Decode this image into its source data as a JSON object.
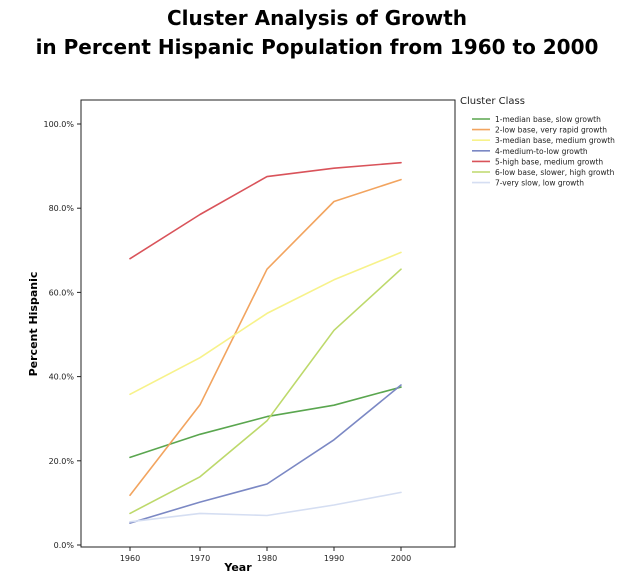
{
  "title_line1": "Cluster Analysis of Growth",
  "title_line2": "in Percent Hispanic Population from 1960 to 2000",
  "chart_data": {
    "type": "line",
    "title": "Cluster Analysis of Growth in Percent Hispanic Population from 1960 to 2000",
    "xlabel": "Year",
    "ylabel": "Percent Hispanic",
    "x": [
      "1960",
      "1970",
      "1980",
      "1990",
      "2000"
    ],
    "yticks": [
      "0.0%",
      "20.0%",
      "40.0%",
      "60.0%",
      "80.0%",
      "100.0%"
    ],
    "ylim": [
      0,
      100
    ],
    "grid": false,
    "legend_title": "Cluster Class",
    "legend_position": "top-right, outside plot",
    "series": [
      {
        "name": "1-median base, slow growth",
        "color": "#5aa64f",
        "values": [
          20.8,
          26.3,
          30.5,
          33.2,
          37.5
        ]
      },
      {
        "name": "2-low base, very rapid growth",
        "color": "#f2a45f",
        "values": [
          11.8,
          33.3,
          65.5,
          81.6,
          86.8
        ]
      },
      {
        "name": "3-median base, medium growth",
        "color": "#f7f28a",
        "values": [
          35.8,
          44.5,
          55.0,
          63.0,
          69.5
        ]
      },
      {
        "name": "4-medium-to-low growth",
        "color": "#7b88c4",
        "values": [
          5.2,
          10.2,
          14.5,
          25.0,
          38.0
        ]
      },
      {
        "name": "5-high base, medium growth",
        "color": "#d9535a",
        "values": [
          68.0,
          78.5,
          87.5,
          89.5,
          90.8
        ]
      },
      {
        "name": "6-low base, slower, high growth",
        "color": "#bdd96b",
        "values": [
          7.5,
          16.2,
          29.5,
          51.0,
          65.5
        ]
      },
      {
        "name": "7-very slow, low growth",
        "color": "#d5def2",
        "values": [
          5.5,
          7.5,
          7.0,
          9.5,
          12.5
        ]
      }
    ]
  }
}
